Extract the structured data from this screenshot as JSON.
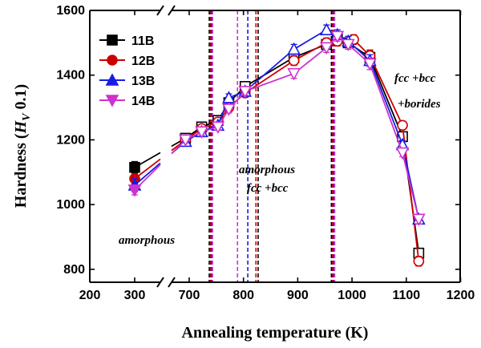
{
  "chart_data": {
    "type": "line",
    "xlabel": "Annealing temperature (K)",
    "ylabel": "Hardness (H_V 0.1)",
    "ylabel_parts": {
      "prefix": "Hardness (",
      "symbol": "H",
      "subscript": "V",
      "suffix": " 0.1)"
    },
    "x_ticks": [
      "200",
      "300",
      "700",
      "800",
      "900",
      "1000",
      "1100",
      "1200"
    ],
    "y_ticks": [
      "800",
      "1000",
      "1200",
      "1400",
      "1600"
    ],
    "ylim": [
      760,
      1600
    ],
    "x_break_between": [
      300,
      700
    ],
    "legend_position": "top-left",
    "series": [
      {
        "name": "11B",
        "color": "#000000",
        "marker": "square",
        "x": [
          300,
          673,
          723,
          753,
          773,
          803,
          893,
          953,
          973,
          993,
          1033,
          1093,
          1123
        ],
        "y": [
          1115,
          1205,
          1240,
          1260,
          1315,
          1365,
          1455,
          1495,
          1515,
          1500,
          1455,
          1210,
          850
        ],
        "err": [
          18,
          10,
          10,
          10,
          12,
          12,
          15,
          15,
          15,
          15,
          20,
          12,
          15
        ]
      },
      {
        "name": "12B",
        "color": "#cc0000",
        "marker": "circle",
        "x": [
          300,
          673,
          723,
          753,
          773,
          803,
          893,
          953,
          973,
          1003,
          1033,
          1093,
          1123
        ],
        "y": [
          1080,
          1200,
          1235,
          1255,
          1300,
          1345,
          1445,
          1500,
          1505,
          1510,
          1460,
          1245,
          825
        ],
        "err": [
          15,
          10,
          10,
          10,
          12,
          12,
          15,
          15,
          15,
          15,
          18,
          12,
          15
        ]
      },
      {
        "name": "13B",
        "color": "#1a1ae6",
        "marker": "triangle-up",
        "x": [
          300,
          673,
          723,
          753,
          773,
          803,
          893,
          953,
          973,
          993,
          1033,
          1093,
          1123
        ],
        "y": [
          1060,
          1195,
          1225,
          1245,
          1330,
          1350,
          1480,
          1540,
          1525,
          1505,
          1445,
          1185,
          955
        ],
        "err": [
          20,
          10,
          10,
          10,
          12,
          12,
          15,
          15,
          15,
          15,
          18,
          12,
          15
        ]
      },
      {
        "name": "14B",
        "color": "#cc33cc",
        "marker": "triangle-down",
        "x": [
          300,
          673,
          723,
          753,
          773,
          803,
          893,
          953,
          973,
          993,
          1033,
          1093,
          1123
        ],
        "y": [
          1045,
          1200,
          1225,
          1240,
          1295,
          1350,
          1405,
          1485,
          1520,
          1495,
          1435,
          1160,
          955
        ],
        "err": [
          15,
          10,
          10,
          10,
          12,
          12,
          15,
          15,
          15,
          15,
          18,
          12,
          15
        ]
      }
    ],
    "transition_lines": [
      {
        "x": 737,
        "color": "#000000"
      },
      {
        "x": 739,
        "color": "#cc0000"
      },
      {
        "x": 741,
        "color": "#1a1ae6"
      },
      {
        "x": 743,
        "color": "#cc33cc"
      },
      {
        "x": 789,
        "color": "#cc33cc"
      },
      {
        "x": 808,
        "color": "#1a1ae6"
      },
      {
        "x": 823,
        "color": "#cc0000"
      },
      {
        "x": 827,
        "color": "#000000"
      },
      {
        "x": 962,
        "color": "#000000"
      },
      {
        "x": 964,
        "color": "#cc0000"
      },
      {
        "x": 966,
        "color": "#1a1ae6"
      },
      {
        "x": 968,
        "color": "#cc33cc"
      }
    ],
    "annotations": [
      {
        "id": "amorphous",
        "text": "amorphous"
      },
      {
        "id": "amorphous-2",
        "text": "amorphous"
      },
      {
        "id": "fcc-bcc",
        "text": "fcc +bcc"
      },
      {
        "id": "fcc-bcc-2",
        "text": "fcc +bcc"
      },
      {
        "id": "borides",
        "text": "+borides"
      }
    ]
  }
}
